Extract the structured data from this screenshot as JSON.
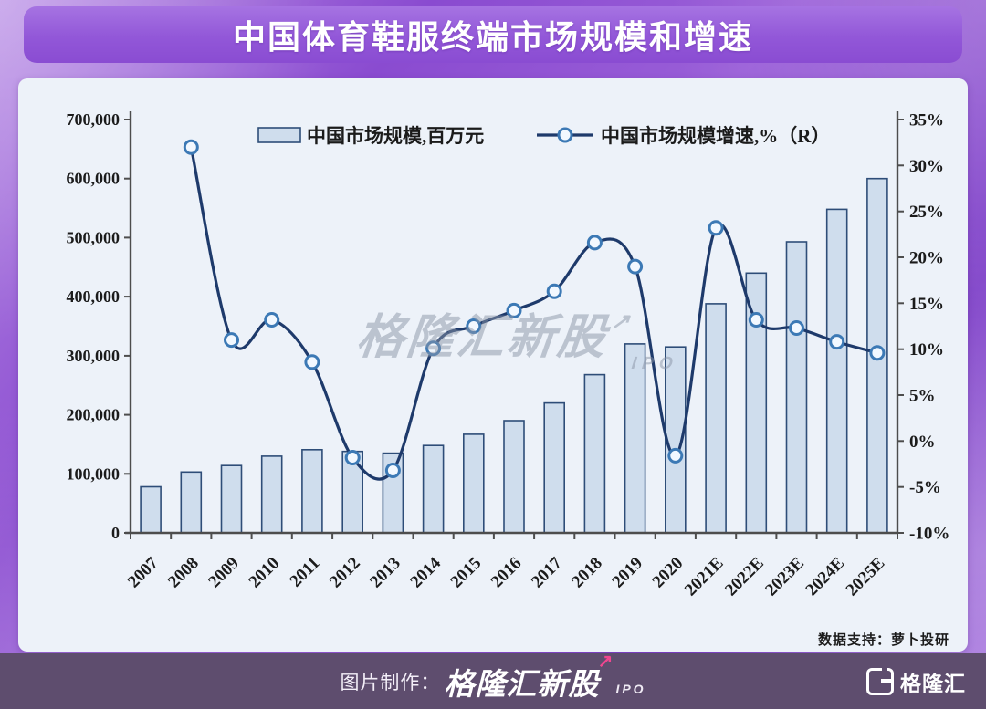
{
  "title": "中国体育鞋服终端市场规模和增速",
  "watermark": {
    "main": "格隆汇新股",
    "sub": "IPO"
  },
  "icons": {
    "trend_arrow": "↗"
  },
  "source_note": "数据支持：萝卜投研",
  "footer": {
    "caption": "图片制作：",
    "brand": "格隆汇新股",
    "brand_sub": "IPO",
    "logo_letter": "G",
    "logo_text": "格隆汇"
  },
  "colors": {
    "bar_fill": "#cfdded",
    "bar_border": "#2e4d78",
    "line": "#1e3a6b",
    "marker_fill": "#f2f8ff",
    "marker_stroke": "#3c79b5",
    "axis": "#4d4d4d",
    "tick_text": "#1b1b1b",
    "card_bg": "#edf2f9",
    "accent_purple": "#9257d8",
    "footer_bg": "#5e4d6e",
    "arrow_pink": "#f0468f"
  },
  "chart_data": {
    "type": "bar+line",
    "title": "中国体育鞋服终端市场规模和增速",
    "categories": [
      "2007",
      "2008",
      "2009",
      "2010",
      "2011",
      "2012",
      "2013",
      "2014",
      "2015",
      "2016",
      "2017",
      "2018",
      "2019",
      "2020",
      "2021E",
      "2022E",
      "2023E",
      "2024E",
      "2025E"
    ],
    "series": [
      {
        "name": "中国市场规模,百万元",
        "type": "bar",
        "axis": "left",
        "values": [
          78000,
          103000,
          114000,
          130000,
          141000,
          138000,
          135000,
          148000,
          167000,
          190000,
          220000,
          268000,
          320000,
          315000,
          388000,
          440000,
          493000,
          548000,
          600000
        ]
      },
      {
        "name": "中国市场规模增速,%（R）",
        "type": "line",
        "axis": "right",
        "values": [
          null,
          32,
          11,
          13.2,
          8.6,
          -1.8,
          -3.2,
          10.1,
          12.5,
          14.2,
          16.3,
          21.6,
          19,
          -1.6,
          23.2,
          13.2,
          12.3,
          10.8,
          9.6
        ]
      }
    ],
    "left_axis": {
      "min": 0,
      "max": 700000,
      "step": 100000,
      "tick_labels": [
        "0",
        "100,000",
        "200,000",
        "300,000",
        "400,000",
        "500,000",
        "600,000",
        "700,000"
      ]
    },
    "right_axis": {
      "min": -10,
      "max": 35,
      "step": 5,
      "tick_labels": [
        "-10%",
        "-5%",
        "0%",
        "5%",
        "10%",
        "15%",
        "20%",
        "25%",
        "30%",
        "35%"
      ]
    },
    "legend_position": "top-center",
    "grid": false
  }
}
